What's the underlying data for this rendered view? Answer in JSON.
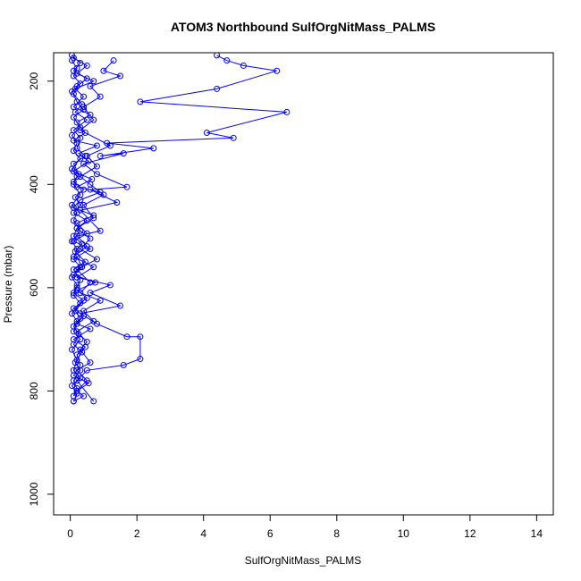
{
  "chart_data": {
    "type": "line",
    "title": "ATOM3 Northbound SulfOrgNitMass_PALMS",
    "xlabel": "SulfOrgNitMass_PALMS",
    "ylabel": "Pressure (mbar)",
    "xlim": [
      -0.5,
      14.5
    ],
    "ylim": [
      1040,
      145
    ],
    "y_reversed": true,
    "x_ticks": [
      0,
      2,
      4,
      6,
      8,
      10,
      12,
      14
    ],
    "y_ticks": [
      200,
      400,
      600,
      800,
      1000
    ],
    "grid": false,
    "marker": "open-circle",
    "series": [
      {
        "color": "#0000ff",
        "points": [
          [
            0.05,
            160
          ],
          [
            0.2,
            175
          ],
          [
            0.1,
            190
          ],
          [
            0.3,
            205
          ],
          [
            0.05,
            220
          ],
          [
            0.2,
            240
          ],
          [
            0.4,
            255
          ],
          [
            0.1,
            270
          ],
          [
            0.3,
            290
          ],
          [
            0.05,
            305
          ],
          [
            0.2,
            320
          ],
          [
            0.1,
            335
          ],
          [
            0.3,
            350
          ],
          [
            0.05,
            370
          ],
          [
            0.2,
            385
          ],
          [
            0.1,
            400
          ],
          [
            0.3,
            420
          ],
          [
            0.05,
            440
          ],
          [
            0.2,
            455
          ],
          [
            0.1,
            470
          ],
          [
            0.3,
            490
          ],
          [
            0.05,
            510
          ],
          [
            0.2,
            525
          ],
          [
            0.1,
            545
          ],
          [
            0.3,
            560
          ],
          [
            0.05,
            580
          ],
          [
            0.2,
            595
          ],
          [
            0.1,
            615
          ],
          [
            0.3,
            630
          ],
          [
            0.05,
            650
          ],
          [
            0.2,
            665
          ],
          [
            0.1,
            685
          ],
          [
            0.3,
            700
          ],
          [
            0.05,
            720
          ],
          [
            0.2,
            740
          ],
          [
            0.1,
            760
          ],
          [
            0.3,
            775
          ],
          [
            0.05,
            790
          ],
          [
            0.2,
            805
          ],
          [
            0.1,
            820
          ]
        ]
      },
      {
        "color": "#0000ff",
        "points": [
          [
            0.1,
            155
          ],
          [
            0.5,
            170
          ],
          [
            0.2,
            185
          ],
          [
            0.7,
            200
          ],
          [
            0.15,
            215
          ],
          [
            0.4,
            230
          ],
          [
            0.1,
            250
          ],
          [
            0.6,
            265
          ],
          [
            0.2,
            280
          ],
          [
            0.45,
            300
          ],
          [
            0.1,
            315
          ],
          [
            0.8,
            325
          ],
          [
            0.25,
            340
          ],
          [
            0.55,
            355
          ],
          [
            0.1,
            375
          ],
          [
            0.65,
            390
          ],
          [
            0.2,
            405
          ],
          [
            0.9,
            415
          ],
          [
            0.3,
            430
          ],
          [
            0.1,
            445
          ],
          [
            0.7,
            460
          ],
          [
            0.2,
            475
          ],
          [
            0.5,
            495
          ],
          [
            0.1,
            510
          ],
          [
            0.6,
            525
          ],
          [
            0.2,
            540
          ],
          [
            0.35,
            560
          ],
          [
            0.1,
            575
          ],
          [
            0.75,
            590
          ],
          [
            0.2,
            605
          ],
          [
            0.5,
            620
          ],
          [
            0.1,
            640
          ],
          [
            0.4,
            655
          ],
          [
            0.2,
            670
          ],
          [
            0.6,
            680
          ],
          [
            0.1,
            700
          ],
          [
            0.45,
            715
          ],
          [
            0.2,
            730
          ],
          [
            0.3,
            750
          ],
          [
            0.1,
            770
          ],
          [
            0.55,
            785
          ],
          [
            0.2,
            800
          ],
          [
            0.4,
            810
          ],
          [
            0.1,
            820
          ]
        ]
      },
      {
        "color": "#0000ff",
        "points": [
          [
            0.05,
            150
          ],
          [
            0.3,
            165
          ],
          [
            0.1,
            180
          ],
          [
            0.5,
            195
          ],
          [
            0.2,
            210
          ],
          [
            0.1,
            225
          ],
          [
            0.35,
            245
          ],
          [
            0.15,
            260
          ],
          [
            0.5,
            275
          ],
          [
            0.1,
            295
          ],
          [
            0.3,
            310
          ],
          [
            0.2,
            330
          ],
          [
            0.45,
            345
          ],
          [
            0.1,
            360
          ],
          [
            0.25,
            380
          ],
          [
            0.1,
            395
          ],
          [
            0.4,
            410
          ],
          [
            0.15,
            425
          ],
          [
            0.3,
            440
          ],
          [
            0.1,
            455
          ],
          [
            0.5,
            470
          ],
          [
            0.2,
            485
          ],
          [
            0.1,
            500
          ],
          [
            0.35,
            515
          ],
          [
            0.15,
            530
          ],
          [
            0.45,
            550
          ],
          [
            0.1,
            565
          ],
          [
            0.3,
            585
          ],
          [
            0.2,
            600
          ],
          [
            0.1,
            610
          ],
          [
            0.4,
            625
          ],
          [
            0.15,
            645
          ],
          [
            0.3,
            660
          ],
          [
            0.1,
            675
          ],
          [
            0.25,
            690
          ],
          [
            0.1,
            710
          ],
          [
            0.35,
            725
          ],
          [
            0.15,
            745
          ],
          [
            0.3,
            760
          ],
          [
            0.1,
            780
          ],
          [
            0.2,
            795
          ],
          [
            0.1,
            810
          ]
        ]
      },
      {
        "color": "#0000ff",
        "points": [
          [
            4.4,
            150
          ],
          [
            4.7,
            160
          ],
          [
            5.2,
            170
          ],
          [
            6.2,
            180
          ],
          [
            4.4,
            215
          ],
          [
            2.1,
            240
          ],
          [
            6.5,
            260
          ],
          [
            4.1,
            300
          ],
          [
            4.9,
            310
          ],
          [
            1.1,
            320
          ],
          [
            2.5,
            330
          ],
          [
            0.9,
            345
          ],
          [
            1.6,
            340
          ],
          [
            0.4,
            360
          ],
          [
            0.8,
            380
          ],
          [
            1.7,
            405
          ],
          [
            0.6,
            410
          ],
          [
            1.4,
            435
          ],
          [
            0.3,
            450
          ],
          [
            0.9,
            490
          ],
          [
            0.2,
            500
          ],
          [
            0.5,
            520
          ],
          [
            0.1,
            540
          ],
          [
            0.7,
            560
          ],
          [
            0.2,
            580
          ],
          [
            1.2,
            595
          ],
          [
            0.6,
            610
          ],
          [
            1.5,
            635
          ],
          [
            0.3,
            650
          ],
          [
            0.8,
            670
          ],
          [
            1.7,
            695
          ],
          [
            2.1,
            695
          ],
          [
            2.1,
            738
          ],
          [
            1.6,
            750
          ],
          [
            0.5,
            760
          ],
          [
            0.2,
            780
          ],
          [
            0.7,
            820
          ]
        ]
      },
      {
        "color": "#0000ff",
        "points": [
          [
            1.3,
            160
          ],
          [
            1.0,
            180
          ],
          [
            1.5,
            190
          ],
          [
            0.6,
            210
          ],
          [
            0.9,
            230
          ],
          [
            0.4,
            250
          ],
          [
            0.7,
            275
          ],
          [
            0.3,
            295
          ],
          [
            1.2,
            325
          ],
          [
            0.5,
            345
          ],
          [
            0.8,
            365
          ],
          [
            0.3,
            385
          ],
          [
            0.6,
            400
          ],
          [
            1.0,
            420
          ],
          [
            0.4,
            440
          ],
          [
            0.7,
            465
          ],
          [
            0.2,
            485
          ],
          [
            0.6,
            505
          ],
          [
            0.3,
            525
          ],
          [
            0.8,
            545
          ],
          [
            0.2,
            565
          ],
          [
            0.6,
            590
          ],
          [
            0.3,
            610
          ],
          [
            0.9,
            625
          ],
          [
            0.4,
            645
          ],
          [
            0.7,
            665
          ],
          [
            0.2,
            685
          ],
          [
            0.5,
            705
          ],
          [
            0.3,
            720
          ],
          [
            0.6,
            745
          ],
          [
            0.2,
            760
          ],
          [
            0.5,
            780
          ],
          [
            0.2,
            800
          ]
        ]
      }
    ]
  }
}
